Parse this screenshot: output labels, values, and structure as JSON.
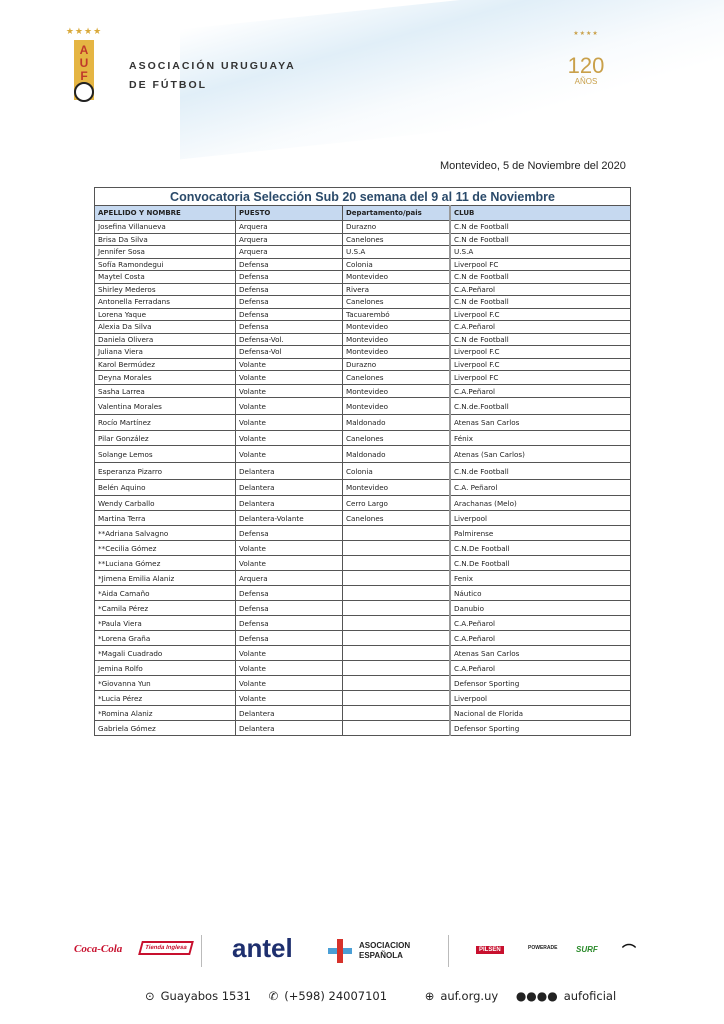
{
  "header": {
    "org_line1": "ASOCIACIÓN URUGUAYA",
    "org_line2": "DE FÚTBOL",
    "crest_text": "AUF",
    "anniv_number": "120",
    "anniv_word": "AÑOS"
  },
  "date": "Montevideo, 5 de Noviembre del 2020",
  "table": {
    "title": "Convocatoria Selección  Sub 20 semana del 9  al 11 de Noviembre",
    "columns": [
      "APELLIDO Y NOMBRE",
      "PUESTO",
      "Departamento/pais",
      "CLUB"
    ],
    "rows": [
      [
        "Josefina Villanueva",
        "Arquera",
        "Durazno",
        "C.N de Football"
      ],
      [
        "Brisa Da Silva",
        "Arquera",
        "Canelones",
        "C.N de Football"
      ],
      [
        "Jennifer Sosa",
        "Arquera",
        "U.S.A",
        "U.S.A"
      ],
      [
        "Sofía Ramondegui",
        "Defensa",
        "Colonia",
        "Liverpool FC"
      ],
      [
        "Maytel Costa",
        "Defensa",
        "Montevideo",
        "C.N de Football"
      ],
      [
        "Shirley Mederos",
        "Defensa",
        "Rivera",
        "C.A.Peñarol"
      ],
      [
        "Antonella Ferradans",
        "Defensa",
        "Canelones",
        "C.N de Football"
      ],
      [
        "Lorena Yaque",
        "Defensa",
        "Tacuarembó",
        "Liverpool F.C"
      ],
      [
        "Alexia Da Silva",
        "Defensa",
        "Montevideo",
        "C.A.Peñarol"
      ],
      [
        "Daniela Olivera",
        "Defensa-Vol.",
        "Montevideo",
        "C.N de Football"
      ],
      [
        "Juliana Viera",
        "Defensa-Vol",
        "Montevideo",
        "Liverpool F.C"
      ],
      [
        "Karol Bermúdez",
        "Volante",
        "Durazno",
        "Liverpool F.C"
      ],
      [
        "Deyna Morales",
        "Volante",
        "Canelones",
        "Liverpool FC"
      ],
      [
        "Sasha Larrea",
        "Volante",
        "Montevideo",
        "C.A.Peñarol"
      ],
      [
        "Valentina Morales",
        "Volante",
        "Montevideo",
        "C.N.de.Football"
      ],
      [
        "Rocío Martínez",
        "Volante",
        "Maldonado",
        "Atenas San Carlos"
      ],
      [
        "Pilar González",
        "Volante",
        "Canelones",
        "Fénix"
      ],
      [
        "Solange Lemos",
        "Volante",
        "Maldonado",
        "Atenas (San Carlos)"
      ],
      [
        "Esperanza Pizarro",
        "Delantera",
        "Colonia",
        "C.N.de Football"
      ],
      [
        "Belén Aquino",
        "Delantera",
        "Montevideo",
        "C.A. Peñarol"
      ],
      [
        "Wendy Carballo",
        "Delantera",
        "Cerro Largo",
        "Arachanas (Melo)"
      ],
      [
        "Martina Terra",
        "Delantera-Volante",
        "Canelones",
        "Liverpool"
      ],
      [
        "**Adriana Salvagno",
        "Defensa",
        "",
        "Palmirense"
      ],
      [
        "**Cecilia Gómez",
        "Volante",
        "",
        "C.N.De Football"
      ],
      [
        "**Luciana Gómez",
        "Volante",
        "",
        "C.N.De Football"
      ],
      [
        "*Jimena Emilia Alaniz",
        "Arquera",
        "",
        "Fenix"
      ],
      [
        "*Aida Camaño",
        "Defensa",
        "",
        "Náutico"
      ],
      [
        "*Camila Pérez",
        "Defensa",
        "",
        "Danubio"
      ],
      [
        "*Paula Viera",
        "Defensa",
        "",
        "C.A.Peñarol"
      ],
      [
        "*Lorena Graña",
        "Defensa",
        "",
        "C.A.Peñarol"
      ],
      [
        "*Magali Cuadrado",
        "Volante",
        "",
        "Atenas San Carlos"
      ],
      [
        "Jemina Rolfo",
        "Volante",
        "",
        "C.A.Peñarol"
      ],
      [
        "*Giovanna Yun",
        "Volante",
        "",
        "Defensor Sporting"
      ],
      [
        "*Lucia Pérez",
        "Volante",
        "",
        "Liverpool"
      ],
      [
        "*Romina Alaniz",
        "Delantera",
        "",
        "Nacional de Florida"
      ],
      [
        "Gabriela Gómez",
        "Delantera",
        "",
        "Defensor Sporting"
      ]
    ]
  },
  "sponsors": [
    "Coca-Cola",
    "Tienda Inglesa",
    "antel",
    "ASOCIACION ESPAÑOLA",
    "PILSEN",
    "POWERADE",
    "SURF",
    "PUMA"
  ],
  "contact": {
    "address": "Guayabos 1531",
    "phone": "(+598) 24007101",
    "web": "auf.org.uy",
    "social": "aufoficial"
  },
  "colors": {
    "title": "#2a4a6a",
    "header_fill": "#c6d9f0",
    "gold": "#c9a04a",
    "antel": "#1e2f6e"
  }
}
